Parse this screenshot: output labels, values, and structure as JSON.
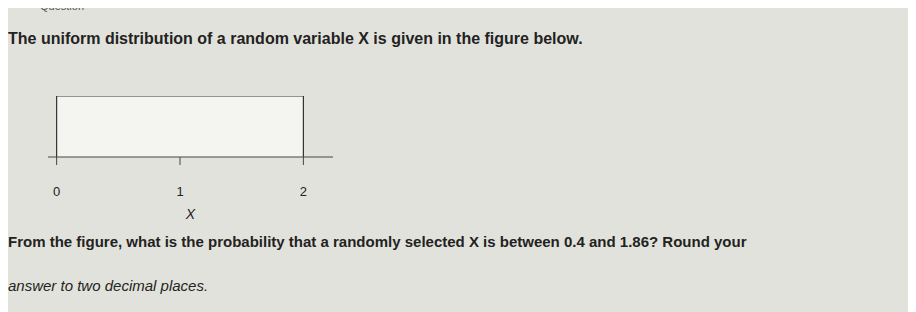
{
  "heading": "Question",
  "intro": "The uniform distribution of a random variable X is given in the figure below.",
  "chart_data": {
    "type": "area",
    "x": [
      0,
      0,
      2,
      2
    ],
    "values": [
      0,
      0.5,
      0.5,
      0
    ],
    "color": "#333333",
    "xlabel": "X",
    "xlim": [
      -0.07,
      2.24
    ],
    "xticks": [
      0,
      1,
      2
    ],
    "ylim": [
      0,
      0.5
    ],
    "tick_labels": "x"
  },
  "question_lines": [
    "From the figure, what is the probability that a randomly selected X is between 0.4 and 1.86? Round your",
    "answer to two decimal places."
  ]
}
